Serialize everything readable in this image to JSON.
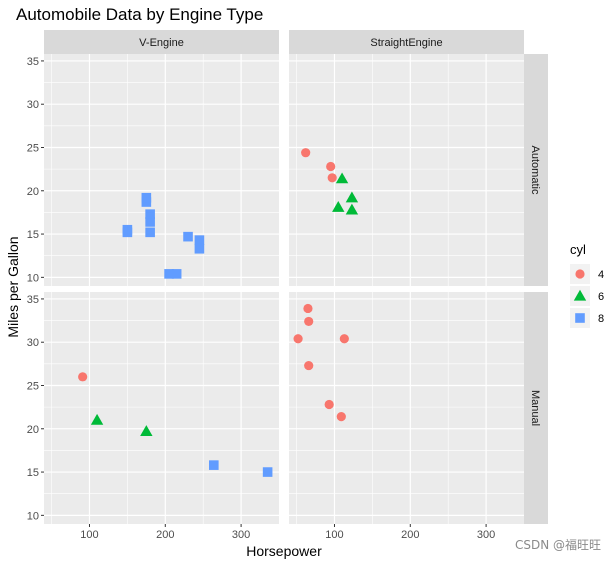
{
  "chart_data": {
    "type": "scatter",
    "title": "Automobile Data by Engine Type",
    "xlabel": "Horsepower",
    "ylabel": "Miles per Gallon",
    "xlim": [
      40,
      350
    ],
    "ylim": [
      9,
      35.8
    ],
    "x_ticks": [
      100,
      200,
      300
    ],
    "y_ticks": [
      10,
      15,
      20,
      25,
      30,
      35
    ],
    "facet_cols": [
      "V-Engine",
      "StraightEngine"
    ],
    "facet_rows": [
      "Automatic",
      "Manual"
    ],
    "grid": true,
    "legend": {
      "title": "cyl",
      "placement": "right",
      "entries": [
        {
          "label": "4",
          "color": "#F8766D",
          "shape": "circle"
        },
        {
          "label": "6",
          "color": "#00BA38",
          "shape": "triangle"
        },
        {
          "label": "8",
          "color": "#619CFF",
          "shape": "square"
        }
      ]
    },
    "panels": [
      {
        "col": "V-Engine",
        "row": "Automatic",
        "points": [
          {
            "x": 175,
            "y": 18.7,
            "cyl": "8"
          },
          {
            "x": 245,
            "y": 14.3,
            "cyl": "8"
          },
          {
            "x": 180,
            "y": 16.4,
            "cyl": "8"
          },
          {
            "x": 180,
            "y": 17.3,
            "cyl": "8"
          },
          {
            "x": 180,
            "y": 15.2,
            "cyl": "8"
          },
          {
            "x": 205,
            "y": 10.4,
            "cyl": "8"
          },
          {
            "x": 215,
            "y": 10.4,
            "cyl": "8"
          },
          {
            "x": 230,
            "y": 14.7,
            "cyl": "8"
          },
          {
            "x": 150,
            "y": 15.5,
            "cyl": "8"
          },
          {
            "x": 150,
            "y": 15.2,
            "cyl": "8"
          },
          {
            "x": 245,
            "y": 13.3,
            "cyl": "8"
          },
          {
            "x": 175,
            "y": 19.2,
            "cyl": "8"
          }
        ]
      },
      {
        "col": "StraightEngine",
        "row": "Automatic",
        "points": [
          {
            "x": 110,
            "y": 21.4,
            "cyl": "6"
          },
          {
            "x": 105,
            "y": 18.1,
            "cyl": "6"
          },
          {
            "x": 123,
            "y": 19.2,
            "cyl": "6"
          },
          {
            "x": 123,
            "y": 17.8,
            "cyl": "6"
          },
          {
            "x": 62,
            "y": 24.4,
            "cyl": "4"
          },
          {
            "x": 95,
            "y": 22.8,
            "cyl": "4"
          },
          {
            "x": 97,
            "y": 21.5,
            "cyl": "4"
          }
        ]
      },
      {
        "col": "V-Engine",
        "row": "Manual",
        "points": [
          {
            "x": 110,
            "y": 21.0,
            "cyl": "6"
          },
          {
            "x": 175,
            "y": 19.7,
            "cyl": "6"
          },
          {
            "x": 91,
            "y": 26.0,
            "cyl": "4"
          },
          {
            "x": 264,
            "y": 15.8,
            "cyl": "8"
          },
          {
            "x": 335,
            "y": 15.0,
            "cyl": "8"
          }
        ]
      },
      {
        "col": "StraightEngine",
        "row": "Manual",
        "points": [
          {
            "x": 93,
            "y": 22.8,
            "cyl": "4"
          },
          {
            "x": 66,
            "y": 32.4,
            "cyl": "4"
          },
          {
            "x": 52,
            "y": 30.4,
            "cyl": "4"
          },
          {
            "x": 65,
            "y": 33.9,
            "cyl": "4"
          },
          {
            "x": 66,
            "y": 27.3,
            "cyl": "4"
          },
          {
            "x": 113,
            "y": 30.4,
            "cyl": "4"
          },
          {
            "x": 109,
            "y": 21.4,
            "cyl": "4"
          }
        ]
      }
    ]
  },
  "watermark": "CSDN @福旺旺"
}
